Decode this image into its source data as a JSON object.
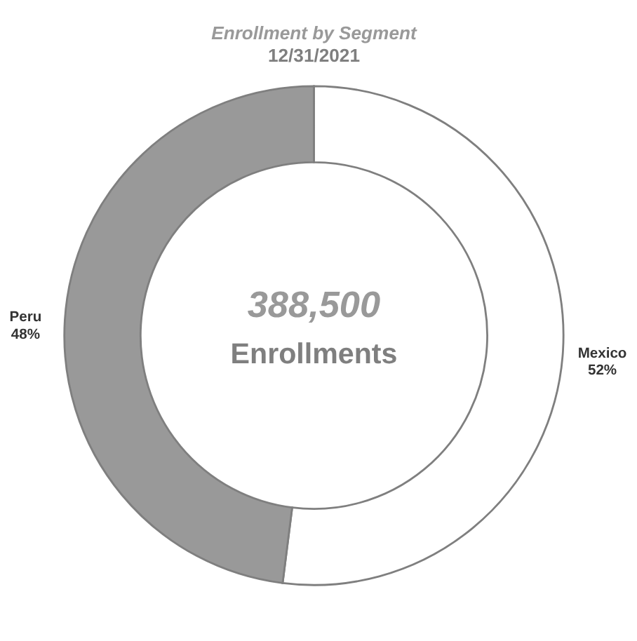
{
  "chart_data": {
    "type": "donut",
    "title": "Enrollment by Segment",
    "subtitle": "12/31/2021",
    "categories": [
      "Mexico",
      "Peru"
    ],
    "values": [
      52,
      48
    ],
    "colors": [
      "#ffffff",
      "#999999"
    ],
    "value_labels": [
      "52%",
      "48%"
    ],
    "legend": false,
    "annotations": [
      "388,500",
      "Enrollments"
    ]
  }
}
